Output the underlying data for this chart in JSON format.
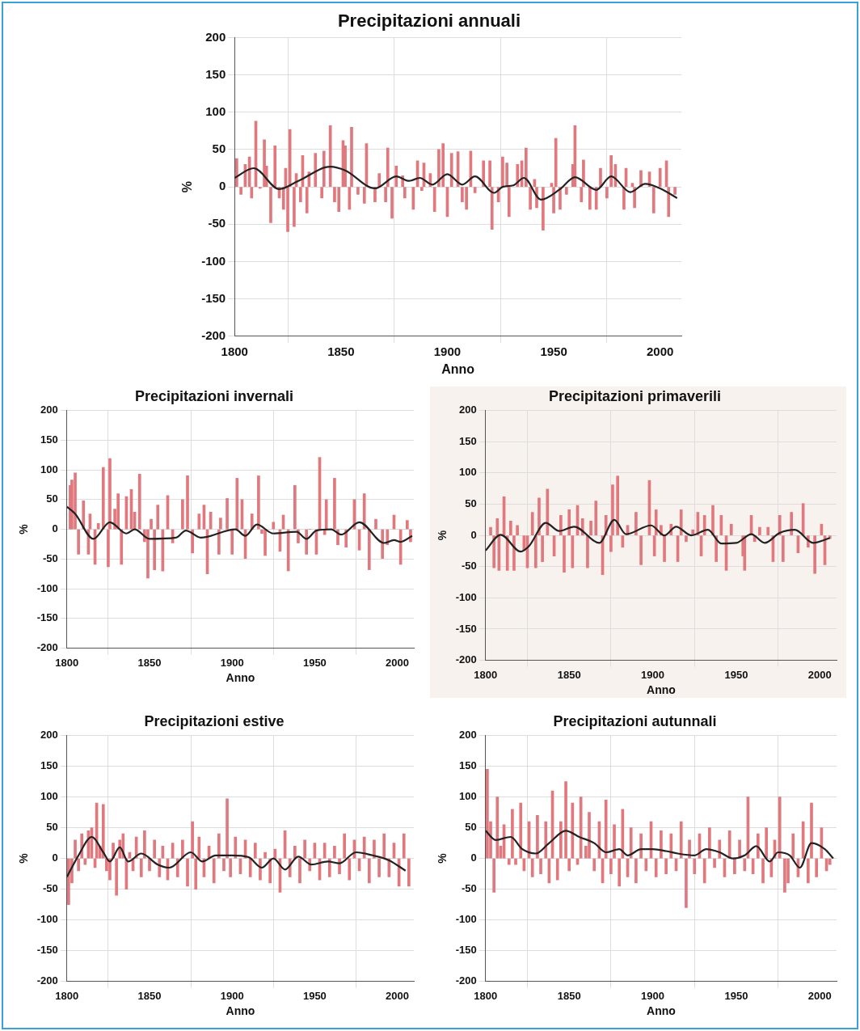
{
  "chart_data": [
    {
      "type": "bar",
      "title": "Precipitazioni annuali",
      "xlabel": "Anno",
      "ylabel": "%",
      "xlim": [
        1800,
        2010
      ],
      "xticks": [
        1800,
        1850,
        1900,
        1950,
        2000
      ],
      "ylim": [
        -200,
        200
      ],
      "yticks": [
        -200,
        -150,
        -100,
        -50,
        0,
        50,
        100,
        150,
        200
      ],
      "grid": true,
      "series": [
        {
          "color": "#e0787e",
          "x": [
            1801,
            1803,
            1805,
            1807,
            1808,
            1810,
            1812,
            1814,
            1815,
            1817,
            1819,
            1821,
            1823,
            1824,
            1825,
            1826,
            1828,
            1829,
            1831,
            1832,
            1834,
            1835,
            1838,
            1841,
            1842,
            1845,
            1847,
            1849,
            1851,
            1852,
            1854,
            1855,
            1858,
            1861,
            1862,
            1866,
            1868,
            1871,
            1872,
            1874,
            1876,
            1879,
            1880,
            1884,
            1886,
            1888,
            1889,
            1892,
            1894,
            1896,
            1898,
            1900,
            1902,
            1905,
            1907,
            1909,
            1911,
            1913,
            1917,
            1920,
            1921,
            1924,
            1926,
            1928,
            1929,
            1933,
            1935,
            1937,
            1939,
            1941,
            1942,
            1945,
            1949,
            1950,
            1951,
            1953,
            1956,
            1959,
            1960,
            1963,
            1964,
            1967,
            1970,
            1972,
            1975,
            1977,
            1979,
            1983,
            1984,
            1987,
            1988,
            1991,
            1995,
            1997,
            2000,
            2003,
            2004,
            2007
          ],
          "values": [
            38,
            -10,
            30,
            40,
            -15,
            88,
            -2,
            63,
            28,
            -48,
            55,
            -15,
            -30,
            25,
            -60,
            77,
            -53,
            18,
            -20,
            42,
            -35,
            20,
            45,
            -15,
            48,
            82,
            -20,
            -33,
            62,
            55,
            -30,
            80,
            -10,
            -22,
            58,
            -20,
            18,
            -20,
            52,
            -42,
            28,
            15,
            -15,
            -30,
            35,
            -5,
            32,
            18,
            -33,
            50,
            58,
            -40,
            45,
            47,
            -20,
            -30,
            48,
            -8,
            35,
            35,
            -57,
            -20,
            40,
            32,
            -40,
            30,
            35,
            52,
            -30,
            10,
            -28,
            -58,
            5,
            -35,
            65,
            -30,
            -10,
            30,
            82,
            -20,
            36,
            -30,
            -30,
            25,
            -15,
            42,
            30,
            -30,
            25,
            5,
            -28,
            22,
            20,
            -35,
            25,
            35,
            -40,
            -10
          ]
        },
        {
          "type": "line",
          "color": "#222222",
          "x": [
            1800,
            1809,
            1821,
            1830,
            1845,
            1852,
            1866,
            1876,
            1882,
            1887,
            1893,
            1900,
            1907,
            1913,
            1922,
            1926,
            1931,
            1936,
            1944,
            1953,
            1960,
            1970,
            1977,
            1986,
            1993,
            2000,
            2008
          ],
          "values": [
            12,
            25,
            -3,
            8,
            27,
            22,
            -2,
            14,
            8,
            12,
            3,
            17,
            3,
            14,
            -8,
            0,
            2,
            12,
            -17,
            -3,
            13,
            -4,
            14,
            -7,
            4,
            -2,
            -15
          ]
        }
      ]
    },
    {
      "type": "bar",
      "title": "Precipitazioni invernali",
      "xlabel": "Anno",
      "ylabel": "%",
      "xlim": [
        1800,
        2010
      ],
      "xticks": [
        1800,
        1850,
        1900,
        1950,
        2000
      ],
      "ylim": [
        -200,
        200
      ],
      "yticks": [
        -200,
        -150,
        -100,
        -50,
        0,
        50,
        100,
        150,
        200
      ],
      "grid": true,
      "series": [
        {
          "color": "#e0787e",
          "x": [
            1802,
            1803,
            1805,
            1807,
            1810,
            1813,
            1814,
            1817,
            1819,
            1822,
            1825,
            1826,
            1829,
            1831,
            1833,
            1836,
            1839,
            1841,
            1844,
            1847,
            1849,
            1851,
            1853,
            1855,
            1858,
            1861,
            1864,
            1870,
            1873,
            1876,
            1880,
            1883,
            1885,
            1887,
            1892,
            1893,
            1897,
            1900,
            1903,
            1906,
            1908,
            1912,
            1916,
            1918,
            1920,
            1925,
            1929,
            1931,
            1934,
            1938,
            1940,
            1945,
            1947,
            1951,
            1953,
            1956,
            1957,
            1962,
            1964,
            1969,
            1974,
            1977,
            1980,
            1983,
            1987,
            1991,
            1994,
            1998,
            2002,
            2006,
            2008
          ],
          "values": [
            74,
            83,
            95,
            -42,
            48,
            -42,
            26,
            -59,
            10,
            104,
            -63,
            119,
            34,
            60,
            -59,
            55,
            67,
            29,
            93,
            -21,
            -82,
            17,
            -68,
            41,
            -70,
            57,
            -23,
            50,
            90,
            -40,
            26,
            41,
            -75,
            29,
            -42,
            19,
            52,
            -42,
            86,
            50,
            -49,
            26,
            90,
            -7,
            -44,
            12,
            -37,
            24,
            -70,
            74,
            -23,
            -42,
            0,
            -42,
            121,
            -9,
            50,
            86,
            -26,
            -30,
            50,
            -35,
            60,
            -68,
            17,
            -49,
            -26,
            24,
            -59,
            15,
            -21
          ]
        },
        {
          "type": "line",
          "color": "#222222",
          "x": [
            1800,
            1805,
            1816,
            1826,
            1836,
            1841,
            1850,
            1866,
            1872,
            1881,
            1902,
            1908,
            1915,
            1925,
            1939,
            1945,
            1951,
            1960,
            1966,
            1977,
            1992,
            1998,
            2002,
            2009
          ],
          "values": [
            38,
            26,
            -16,
            12,
            -7,
            0,
            -16,
            -14,
            -2,
            -14,
            0,
            -11,
            8,
            -7,
            -4,
            -16,
            -2,
            0,
            -9,
            12,
            -23,
            -18,
            -21,
            -11
          ]
        }
      ]
    },
    {
      "type": "bar",
      "title": "Precipitazioni primaverili",
      "xlabel": "Anno",
      "ylabel": "%",
      "xlim": [
        1800,
        2010
      ],
      "xticks": [
        1800,
        1850,
        1900,
        1950,
        2000
      ],
      "ylim": [
        -200,
        200
      ],
      "yticks": [
        -200,
        -150,
        -100,
        -50,
        0,
        50,
        100,
        150,
        200
      ],
      "grid": true,
      "series": [
        {
          "color": "#e0787e",
          "x": [
            1803,
            1805,
            1807,
            1808,
            1811,
            1813,
            1815,
            1817,
            1819,
            1823,
            1825,
            1828,
            1830,
            1832,
            1834,
            1837,
            1841,
            1845,
            1847,
            1850,
            1852,
            1855,
            1858,
            1861,
            1863,
            1866,
            1870,
            1872,
            1875,
            1876,
            1879,
            1882,
            1885,
            1890,
            1893,
            1898,
            1901,
            1902,
            1905,
            1907,
            1911,
            1915,
            1917,
            1920,
            1924,
            1927,
            1929,
            1931,
            1936,
            1938,
            1941,
            1944,
            1947,
            1954,
            1955,
            1959,
            1961,
            1964,
            1969,
            1972,
            1976,
            1978,
            1983,
            1987,
            1990,
            1993,
            1997,
            2001,
            2003,
            2006
          ],
          "values": [
            13,
            -52,
            27,
            -56,
            62,
            -56,
            23,
            -56,
            16,
            -24,
            -52,
            37,
            -52,
            60,
            -42,
            74,
            -33,
            32,
            -59,
            41,
            -52,
            48,
            27,
            -52,
            23,
            55,
            -63,
            32,
            -26,
            81,
            95,
            -19,
            16,
            37,
            -47,
            88,
            -33,
            41,
            16,
            -42,
            18,
            -42,
            41,
            -10,
            9,
            37,
            -33,
            32,
            48,
            -42,
            32,
            -56,
            18,
            -33,
            -56,
            32,
            -10,
            13,
            13,
            -42,
            32,
            -42,
            37,
            -28,
            51,
            -19,
            -61,
            18,
            -47,
            -5
          ]
        },
        {
          "type": "line",
          "color": "#222222",
          "x": [
            1800,
            1809,
            1821,
            1826,
            1836,
            1844,
            1853,
            1868,
            1877,
            1884,
            1899,
            1907,
            1914,
            1923,
            1933,
            1941,
            1950,
            1959,
            1967,
            1976,
            1985,
            1996,
            2006
          ],
          "values": [
            -24,
            1,
            -26,
            -17,
            20,
            7,
            14,
            -12,
            25,
            2,
            16,
            0,
            14,
            0,
            9,
            -13,
            -12,
            2,
            -12,
            4,
            9,
            -12,
            -4
          ]
        }
      ]
    },
    {
      "type": "bar",
      "title": "Precipitazioni estive",
      "xlabel": "Anno",
      "ylabel": "%",
      "xlim": [
        1800,
        2010
      ],
      "xticks": [
        1800,
        1850,
        1900,
        1950,
        2000
      ],
      "ylim": [
        -200,
        200
      ],
      "yticks": [
        -200,
        -150,
        -100,
        -50,
        0,
        50,
        100,
        150,
        200
      ],
      "grid": true,
      "series": [
        {
          "color": "#e0787e",
          "x": [
            1801,
            1803,
            1805,
            1807,
            1809,
            1811,
            1813,
            1815,
            1817,
            1818,
            1820,
            1822,
            1824,
            1826,
            1828,
            1830,
            1832,
            1834,
            1836,
            1838,
            1840,
            1842,
            1845,
            1847,
            1850,
            1853,
            1856,
            1858,
            1861,
            1864,
            1867,
            1870,
            1873,
            1876,
            1878,
            1880,
            1883,
            1886,
            1889,
            1892,
            1895,
            1897,
            1899,
            1902,
            1905,
            1908,
            1911,
            1914,
            1917,
            1920,
            1923,
            1926,
            1929,
            1932,
            1935,
            1938,
            1941,
            1944,
            1947,
            1950,
            1953,
            1956,
            1959,
            1962,
            1965,
            1968,
            1971,
            1974,
            1977,
            1980,
            1983,
            1986,
            1989,
            1992,
            1995,
            1998,
            2001,
            2004,
            2007
          ],
          "values": [
            -75,
            -40,
            30,
            -20,
            40,
            -10,
            45,
            50,
            -15,
            90,
            20,
            88,
            -20,
            -35,
            25,
            -60,
            30,
            40,
            -50,
            10,
            -20,
            35,
            -30,
            45,
            -20,
            30,
            -30,
            20,
            -35,
            25,
            -30,
            30,
            -45,
            60,
            -50,
            35,
            -30,
            20,
            -40,
            40,
            -20,
            97,
            -30,
            35,
            -25,
            30,
            -30,
            25,
            -35,
            10,
            -40,
            15,
            -55,
            45,
            -30,
            20,
            -40,
            30,
            -20,
            25,
            -35,
            25,
            -30,
            20,
            -25,
            40,
            -35,
            30,
            -20,
            35,
            -40,
            30,
            -30,
            40,
            -30,
            25,
            -45,
            40,
            -45
          ]
        },
        {
          "type": "line",
          "color": "#222222",
          "x": [
            1800,
            1807,
            1815,
            1822,
            1826,
            1832,
            1837,
            1845,
            1855,
            1862,
            1875,
            1882,
            1890,
            1900,
            1910,
            1918,
            1925,
            1932,
            1940,
            1948,
            1958,
            1965,
            1975,
            1985,
            1995,
            2005
          ],
          "values": [
            -30,
            5,
            35,
            10,
            -5,
            18,
            -5,
            8,
            -10,
            -15,
            10,
            -5,
            5,
            5,
            2,
            -15,
            0,
            -18,
            3,
            -10,
            -5,
            -8,
            10,
            5,
            -3,
            -20
          ]
        }
      ]
    },
    {
      "type": "bar",
      "title": "Precipitazioni autunnali",
      "xlabel": "Anno",
      "ylabel": "%",
      "xlim": [
        1800,
        2010
      ],
      "xticks": [
        1800,
        1850,
        1900,
        1950,
        2000
      ],
      "ylim": [
        -200,
        200
      ],
      "yticks": [
        -200,
        -150,
        -100,
        -50,
        0,
        50,
        100,
        150,
        200
      ],
      "grid": true,
      "series": [
        {
          "color": "#e0787e",
          "x": [
            1801,
            1803,
            1805,
            1807,
            1809,
            1811,
            1814,
            1816,
            1818,
            1821,
            1823,
            1826,
            1828,
            1831,
            1833,
            1836,
            1838,
            1840,
            1843,
            1845,
            1848,
            1850,
            1852,
            1855,
            1857,
            1860,
            1862,
            1865,
            1868,
            1870,
            1872,
            1875,
            1877,
            1880,
            1882,
            1885,
            1887,
            1890,
            1893,
            1896,
            1899,
            1902,
            1905,
            1908,
            1911,
            1914,
            1917,
            1920,
            1922,
            1925,
            1928,
            1931,
            1934,
            1937,
            1940,
            1943,
            1946,
            1949,
            1952,
            1955,
            1957,
            1960,
            1963,
            1966,
            1968,
            1971,
            1973,
            1976,
            1979,
            1981,
            1984,
            1987,
            1990,
            1993,
            1995,
            1998,
            2001,
            2004,
            2006
          ],
          "values": [
            145,
            60,
            -55,
            100,
            20,
            55,
            -10,
            80,
            -10,
            90,
            -20,
            60,
            -30,
            70,
            -25,
            60,
            -40,
            110,
            -35,
            60,
            125,
            -20,
            90,
            -10,
            100,
            20,
            75,
            -20,
            60,
            -40,
            95,
            -25,
            55,
            -45,
            80,
            -30,
            50,
            -40,
            40,
            -20,
            60,
            -30,
            45,
            -25,
            40,
            -20,
            60,
            -80,
            30,
            -25,
            40,
            -40,
            50,
            -15,
            30,
            -30,
            45,
            -25,
            30,
            -20,
            100,
            -25,
            40,
            -40,
            50,
            -30,
            30,
            100,
            -55,
            -40,
            40,
            -30,
            60,
            -40,
            90,
            -30,
            50,
            -20,
            -10
          ]
        },
        {
          "type": "line",
          "color": "#222222",
          "x": [
            1800,
            1806,
            1815,
            1822,
            1830,
            1838,
            1848,
            1856,
            1865,
            1872,
            1880,
            1885,
            1893,
            1900,
            1908,
            1915,
            1925,
            1932,
            1940,
            1948,
            1955,
            1962,
            1970,
            1975,
            1982,
            1988,
            1995,
            2003,
            2008
          ],
          "values": [
            45,
            30,
            35,
            15,
            8,
            25,
            45,
            35,
            25,
            10,
            15,
            5,
            15,
            15,
            12,
            8,
            5,
            15,
            10,
            0,
            5,
            20,
            -5,
            10,
            5,
            -15,
            25,
            15,
            0
          ]
        }
      ]
    }
  ]
}
